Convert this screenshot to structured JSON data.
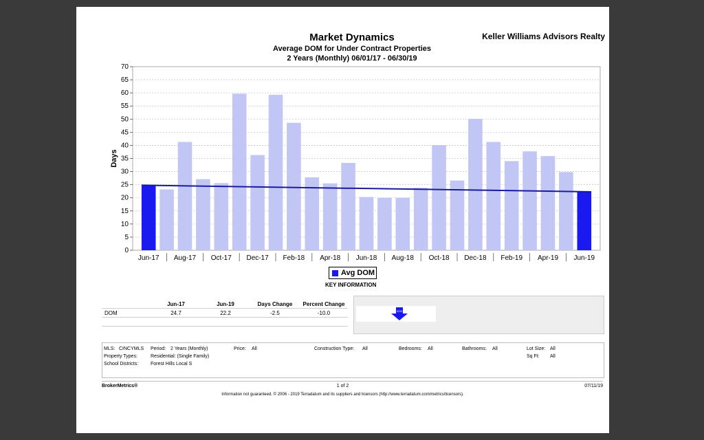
{
  "header": {
    "title": "Market Dynamics",
    "subtitle": "Average DOM for Under Contract Properties",
    "period": "2 Years (Monthly) 06/01/17 - 06/30/19",
    "brand": "Keller Williams Advisors Realty"
  },
  "chart_data": {
    "type": "bar",
    "ylabel": "Days",
    "ylim": [
      0,
      70
    ],
    "yticks": [
      0,
      5,
      10,
      15,
      20,
      25,
      30,
      35,
      40,
      45,
      50,
      55,
      60,
      65,
      70
    ],
    "grid": true,
    "x_tick_labels": [
      "Jun-17",
      "Aug-17",
      "Oct-17",
      "Dec-17",
      "Feb-18",
      "Apr-18",
      "Jun-18",
      "Aug-18",
      "Oct-18",
      "Dec-18",
      "Feb-19",
      "Apr-19",
      "Jun-19"
    ],
    "categories": [
      "Jun-17",
      "Jul-17",
      "Aug-17",
      "Sep-17",
      "Oct-17",
      "Nov-17",
      "Dec-17",
      "Jan-18",
      "Feb-18",
      "Mar-18",
      "Apr-18",
      "May-18",
      "Jun-18",
      "Jul-18",
      "Aug-18",
      "Sep-18",
      "Oct-18",
      "Nov-18",
      "Dec-18",
      "Jan-19",
      "Feb-19",
      "Mar-19",
      "Apr-19",
      "May-19",
      "Jun-19"
    ],
    "values": [
      24.7,
      23.2,
      41.3,
      27.1,
      25.6,
      59.7,
      36.3,
      59.3,
      48.6,
      27.8,
      25.5,
      33.3,
      20.3,
      20.0,
      20.0,
      23.8,
      40.1,
      26.6,
      50.1,
      41.3,
      34.0,
      37.7,
      35.9,
      29.8,
      22.2
    ],
    "highlight_indices": [
      0,
      24
    ],
    "trend_line": {
      "start": 24.8,
      "end": 22.3
    },
    "colors": {
      "bar": "#c2c6f5",
      "highlight": "#1a1af0",
      "trend": "#1a1a9e"
    },
    "legend": {
      "label": "Avg DOM",
      "position": "bottom-center"
    }
  },
  "key": {
    "title": "KEY INFORMATION",
    "columns": [
      "Jun-17",
      "Jun-19",
      "Days Change",
      "Percent Change"
    ],
    "rows": [
      {
        "label": "DOM",
        "values": [
          "24.7",
          "22.2",
          "-2.5",
          "-10.0"
        ]
      }
    ],
    "indicator_label": "DOM",
    "indicator_icon": "down-arrow-icon"
  },
  "criteria": {
    "mls_label": "MLS:",
    "mls": "CINCYMLS",
    "period_label": "Period:",
    "period": "2 Years (Monthly)",
    "price_label": "Price:",
    "price": "All",
    "construction_label": "Construction Type:",
    "construction": "All",
    "bedrooms_label": "Bedrooms:",
    "bedrooms": "All",
    "bathrooms_label": "Bathrooms:",
    "bathrooms": "All",
    "lot_label": "Lot Size:",
    "lot": "All",
    "property_label": "Property Types:",
    "property": "Residential: (Single Family)",
    "sqft_label": "Sq Ft:",
    "sqft": "All",
    "school_label": "School Districts:",
    "school": "Forest Hills Local S"
  },
  "footer": {
    "brand": "BrokerMetrics®",
    "page": "1 of 2",
    "date": "07/11/19",
    "disclaimer": "Information not guaranteed.  © 2006 - 2019 Terradatum and its suppliers and licensors (http://www.terradatum.com/metrics/licensors)."
  }
}
